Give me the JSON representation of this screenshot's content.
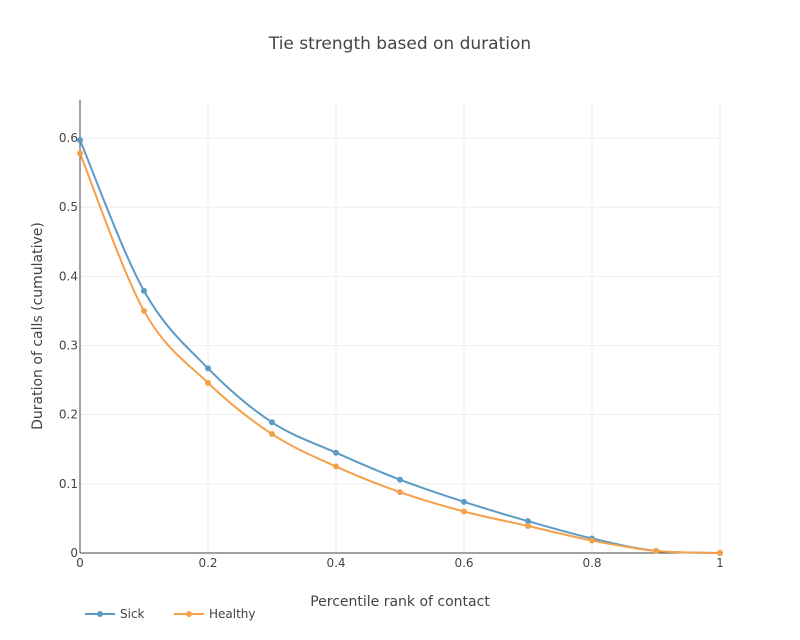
{
  "chart_data": {
    "type": "line",
    "title": "Tie strength based on duration",
    "xlabel": "Percentile rank of contact",
    "ylabel": "Duration of calls (cumulative)",
    "xlim": [
      0,
      1
    ],
    "ylim": [
      0,
      0.655
    ],
    "x_ticks": [
      0,
      0.2,
      0.4,
      0.6,
      0.8,
      1
    ],
    "x_tick_labels": [
      "0",
      "0.2",
      "0.4",
      "0.6",
      "0.8",
      "1"
    ],
    "y_ticks": [
      0,
      0.1,
      0.2,
      0.3,
      0.4,
      0.5,
      0.6
    ],
    "y_tick_labels": [
      "0",
      "0.1",
      "0.2",
      "0.3",
      "0.4",
      "0.5",
      "0.6"
    ],
    "grid": true,
    "legend_position": "bottom-left",
    "x": [
      0,
      0.1,
      0.2,
      0.3,
      0.4,
      0.5,
      0.6,
      0.7,
      0.8,
      0.9,
      1.0
    ],
    "series": [
      {
        "name": "Sick",
        "color": "#5b9bc6",
        "values": [
          0.597,
          0.379,
          0.267,
          0.189,
          0.145,
          0.106,
          0.074,
          0.046,
          0.021,
          0.003,
          0.0
        ]
      },
      {
        "name": "Healthy",
        "color": "#f5a04a",
        "values": [
          0.578,
          0.35,
          0.246,
          0.172,
          0.125,
          0.088,
          0.06,
          0.039,
          0.018,
          0.003,
          0.0
        ]
      }
    ]
  }
}
